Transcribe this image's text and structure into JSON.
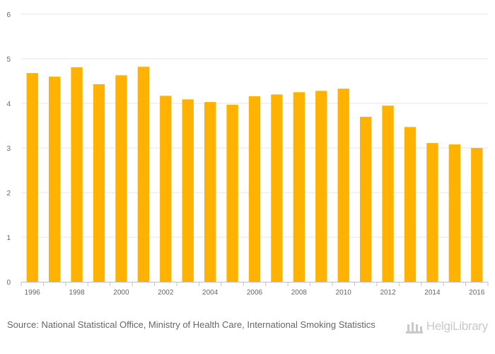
{
  "chart_data": {
    "type": "bar",
    "title": "",
    "xlabel": "",
    "ylabel": "",
    "categories": [
      "1996",
      "1997",
      "1998",
      "1999",
      "2000",
      "2001",
      "2002",
      "2003",
      "2004",
      "2005",
      "2006",
      "2007",
      "2008",
      "2009",
      "2010",
      "2011",
      "2012",
      "2013",
      "2014",
      "2015",
      "2016"
    ],
    "x_tick_labels": [
      "1996",
      "1998",
      "2000",
      "2002",
      "2004",
      "2006",
      "2008",
      "2010",
      "2012",
      "2014",
      "2016"
    ],
    "values": [
      4.68,
      4.6,
      4.81,
      4.43,
      4.63,
      4.82,
      4.17,
      4.09,
      4.03,
      3.97,
      4.16,
      4.2,
      4.25,
      4.28,
      4.33,
      3.7,
      3.95,
      3.47,
      3.11,
      3.08,
      3.0
    ],
    "ylim": [
      0,
      6
    ],
    "y_ticks": [
      0,
      1,
      2,
      3,
      4,
      5,
      6
    ],
    "grid": true,
    "legend": "none",
    "bar_color": "#FFB300"
  },
  "footer": {
    "source_label": "Source:",
    "source_text": "National Statistical Office, Ministry of Health Care, International Smoking Statistics",
    "brand": "HelgiLibrary"
  }
}
